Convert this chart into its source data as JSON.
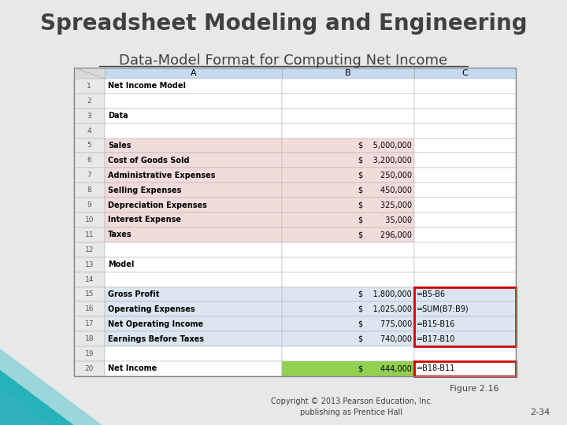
{
  "title": "Spreadsheet Modeling and Engineering",
  "subtitle": "Data-Model Format for Computing Net Income",
  "figure_label": "Figure 2.16",
  "copyright": "Copyright © 2013 Pearson Education, Inc.\npublishing as Prentice Hall",
  "page_num": "2-34",
  "bg_color": "#e8e8e8",
  "table": {
    "rows": [
      {
        "row": 1,
        "A": "Net Income Model",
        "B": "",
        "C": "",
        "bg_A": "#ffffff",
        "bg_B": "#ffffff",
        "bg_C": "#ffffff",
        "bold_A": true
      },
      {
        "row": 2,
        "A": "",
        "B": "",
        "C": "",
        "bg_A": "#ffffff",
        "bg_B": "#ffffff",
        "bg_C": "#ffffff"
      },
      {
        "row": 3,
        "A": "Data",
        "B": "",
        "C": "",
        "bg_A": "#ffffff",
        "bg_B": "#ffffff",
        "bg_C": "#ffffff",
        "bold_A": true
      },
      {
        "row": 4,
        "A": "",
        "B": "",
        "C": "",
        "bg_A": "#ffffff",
        "bg_B": "#ffffff",
        "bg_C": "#ffffff"
      },
      {
        "row": 5,
        "A": "Sales",
        "B": "$    5,000,000",
        "C": "",
        "bg_A": "#f2dcdb",
        "bg_B": "#f2dcdb",
        "bg_C": "#ffffff",
        "bold_A": true
      },
      {
        "row": 6,
        "A": "Cost of Goods Sold",
        "B": "$    3,200,000",
        "C": "",
        "bg_A": "#f2dcdb",
        "bg_B": "#f2dcdb",
        "bg_C": "#ffffff",
        "bold_A": true
      },
      {
        "row": 7,
        "A": "Administrative Expenses",
        "B": "$       250,000",
        "C": "",
        "bg_A": "#f2dcdb",
        "bg_B": "#f2dcdb",
        "bg_C": "#ffffff",
        "bold_A": true
      },
      {
        "row": 8,
        "A": "Selling Expenses",
        "B": "$       450,000",
        "C": "",
        "bg_A": "#f2dcdb",
        "bg_B": "#f2dcdb",
        "bg_C": "#ffffff",
        "bold_A": true
      },
      {
        "row": 9,
        "A": "Depreciation Expenses",
        "B": "$       325,000",
        "C": "",
        "bg_A": "#f2dcdb",
        "bg_B": "#f2dcdb",
        "bg_C": "#ffffff",
        "bold_A": true
      },
      {
        "row": 10,
        "A": "Interest Expense",
        "B": "$         35,000",
        "C": "",
        "bg_A": "#f2dcdb",
        "bg_B": "#f2dcdb",
        "bg_C": "#ffffff",
        "bold_A": true
      },
      {
        "row": 11,
        "A": "Taxes",
        "B": "$       296,000",
        "C": "",
        "bg_A": "#f2dcdb",
        "bg_B": "#f2dcdb",
        "bg_C": "#ffffff",
        "bold_A": true
      },
      {
        "row": 12,
        "A": "",
        "B": "",
        "C": "",
        "bg_A": "#ffffff",
        "bg_B": "#ffffff",
        "bg_C": "#ffffff"
      },
      {
        "row": 13,
        "A": "Model",
        "B": "",
        "C": "",
        "bg_A": "#ffffff",
        "bg_B": "#ffffff",
        "bg_C": "#ffffff",
        "bold_A": true
      },
      {
        "row": 14,
        "A": "",
        "B": "",
        "C": "",
        "bg_A": "#ffffff",
        "bg_B": "#ffffff",
        "bg_C": "#ffffff"
      },
      {
        "row": 15,
        "A": "Gross Profit",
        "B": "$    1,800,000",
        "C": "=B5-B6",
        "bg_A": "#dce6f1",
        "bg_B": "#dce6f1",
        "bg_C": "#dce6f1",
        "bold_A": true
      },
      {
        "row": 16,
        "A": "Operating Expenses",
        "B": "$    1,025,000",
        "C": "=SUM(B7:B9)",
        "bg_A": "#dce6f1",
        "bg_B": "#dce6f1",
        "bg_C": "#dce6f1",
        "bold_A": true
      },
      {
        "row": 17,
        "A": "Net Operating Income",
        "B": "$       775,000",
        "C": "=B15-B16",
        "bg_A": "#dce6f1",
        "bg_B": "#dce6f1",
        "bg_C": "#dce6f1",
        "bold_A": true
      },
      {
        "row": 18,
        "A": "Earnings Before Taxes",
        "B": "$       740,000",
        "C": "=B17-B10",
        "bg_A": "#dce6f1",
        "bg_B": "#dce6f1",
        "bg_C": "#dce6f1",
        "bold_A": true
      },
      {
        "row": 19,
        "A": "",
        "B": "",
        "C": "",
        "bg_A": "#ffffff",
        "bg_B": "#ffffff",
        "bg_C": "#ffffff"
      },
      {
        "row": 20,
        "A": "Net Income",
        "B": "$       444,000",
        "C": "=B18-B11",
        "bg_A": "#ffffff",
        "bg_B": "#92d050",
        "bg_C": "#ffffff",
        "bold_A": true
      }
    ]
  }
}
